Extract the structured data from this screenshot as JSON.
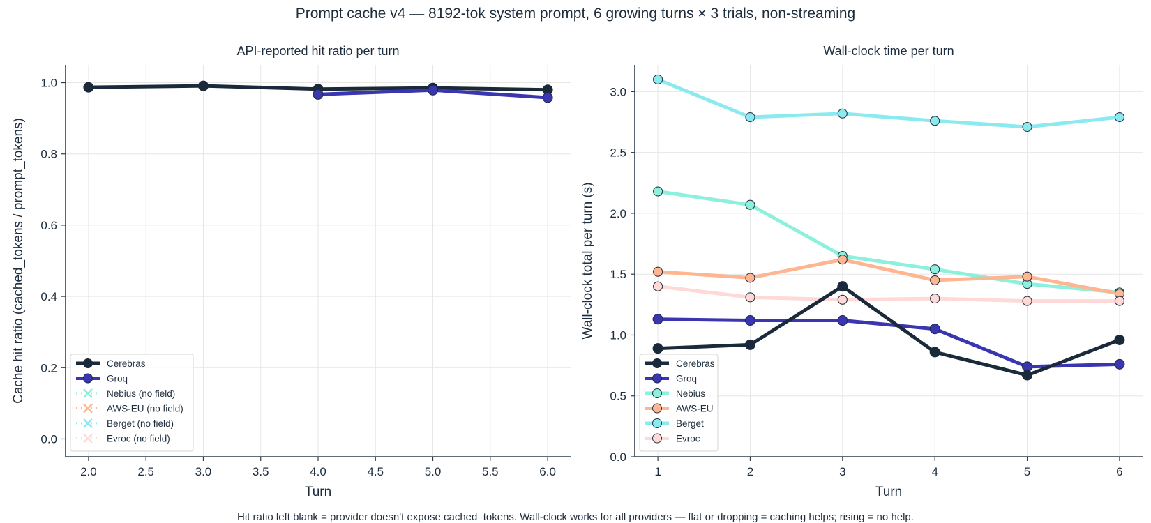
{
  "suptitle": "Prompt cache v4 — 8192-tok system prompt, 6 growing turns × 3 trials, non-streaming",
  "footnote": "Hit ratio left blank = provider doesn't expose cached_tokens.  Wall-clock works for all providers — flat or dropping = caching helps; rising = no help.",
  "chart_data": [
    {
      "type": "line",
      "title": "API-reported hit ratio per turn",
      "xlabel": "Turn",
      "ylabel": "Cache hit ratio (cached_tokens / prompt_tokens)",
      "xlim": [
        1.8,
        6.2
      ],
      "ylim": [
        -0.05,
        1.05
      ],
      "xticks": [
        2.0,
        2.5,
        3.0,
        3.5,
        4.0,
        4.5,
        5.0,
        5.5,
        6.0
      ],
      "xtick_labels": [
        "2.0",
        "2.5",
        "3.0",
        "3.5",
        "4.0",
        "4.5",
        "5.0",
        "5.5",
        "6.0"
      ],
      "yticks": [
        0.0,
        0.2,
        0.4,
        0.6,
        0.8,
        1.0
      ],
      "ytick_labels": [
        "0.0",
        "0.2",
        "0.4",
        "0.6",
        "0.8",
        "1.0"
      ],
      "grid": true,
      "legend_position": "lower-left",
      "series": [
        {
          "name": "Cerebras",
          "label": "Cerebras",
          "color": "#1b2a3a",
          "x": [
            2,
            3,
            4,
            5,
            6
          ],
          "values": [
            0.987,
            0.991,
            0.982,
            0.985,
            0.98
          ],
          "style": "solid"
        },
        {
          "name": "Groq",
          "label": "Groq",
          "color": "#3a35b0",
          "x": [
            4,
            5,
            6
          ],
          "values": [
            0.967,
            0.979,
            0.958
          ],
          "style": "solid"
        },
        {
          "name": "Nebius",
          "label": "Nebius (no field)",
          "color": "#8df0dc",
          "x": [],
          "values": [],
          "style": "dotted-x"
        },
        {
          "name": "AWS-EU",
          "label": "AWS-EU (no field)",
          "color": "#ffb58f",
          "x": [],
          "values": [],
          "style": "dotted-x"
        },
        {
          "name": "Berget",
          "label": "Berget (no field)",
          "color": "#8beaf0",
          "x": [],
          "values": [],
          "style": "dotted-x"
        },
        {
          "name": "Evroc",
          "label": "Evroc (no field)",
          "color": "#ffd8d8",
          "x": [],
          "values": [],
          "style": "dotted-x"
        }
      ]
    },
    {
      "type": "line",
      "title": "Wall-clock time per turn",
      "xlabel": "Turn",
      "ylabel": "Wall-clock total per turn (s)",
      "xlim": [
        0.75,
        6.25
      ],
      "ylim": [
        0.0,
        3.22
      ],
      "xticks": [
        1,
        2,
        3,
        4,
        5,
        6
      ],
      "xtick_labels": [
        "1",
        "2",
        "3",
        "4",
        "5",
        "6"
      ],
      "yticks": [
        0.0,
        0.5,
        1.0,
        1.5,
        2.0,
        2.5,
        3.0
      ],
      "ytick_labels": [
        "0.0",
        "0.5",
        "1.0",
        "1.5",
        "2.0",
        "2.5",
        "3.0"
      ],
      "grid": true,
      "legend_position": "lower-left",
      "series": [
        {
          "name": "Berget",
          "label": "Berget",
          "color": "#8beaf0",
          "x": [
            1,
            2,
            3,
            4,
            5,
            6
          ],
          "values": [
            3.1,
            2.79,
            2.82,
            2.76,
            2.71,
            2.79
          ]
        },
        {
          "name": "Nebius",
          "label": "Nebius",
          "color": "#8df0dc",
          "x": [
            1,
            2,
            3,
            4,
            5,
            6
          ],
          "values": [
            2.18,
            2.07,
            1.65,
            1.54,
            1.42,
            1.35
          ]
        },
        {
          "name": "AWS-EU",
          "label": "AWS-EU",
          "color": "#ffb58f",
          "x": [
            1,
            2,
            3,
            4,
            5,
            6
          ],
          "values": [
            1.52,
            1.47,
            1.62,
            1.45,
            1.48,
            1.34
          ]
        },
        {
          "name": "Evroc",
          "label": "Evroc",
          "color": "#ffd8d8",
          "x": [
            1,
            2,
            3,
            4,
            5,
            6
          ],
          "values": [
            1.4,
            1.31,
            1.29,
            1.3,
            1.28,
            1.28
          ]
        },
        {
          "name": "Groq",
          "label": "Groq",
          "color": "#3a35b0",
          "x": [
            1,
            2,
            3,
            4,
            5,
            6
          ],
          "values": [
            1.13,
            1.12,
            1.12,
            1.05,
            0.74,
            0.76
          ]
        },
        {
          "name": "Cerebras",
          "label": "Cerebras",
          "color": "#1b2a3a",
          "x": [
            1,
            2,
            3,
            4,
            5,
            6
          ],
          "values": [
            0.89,
            0.92,
            1.4,
            0.86,
            0.67,
            0.96
          ]
        }
      ],
      "legend_order": [
        "Cerebras",
        "Groq",
        "Nebius",
        "AWS-EU",
        "Berget",
        "Evroc"
      ]
    }
  ]
}
